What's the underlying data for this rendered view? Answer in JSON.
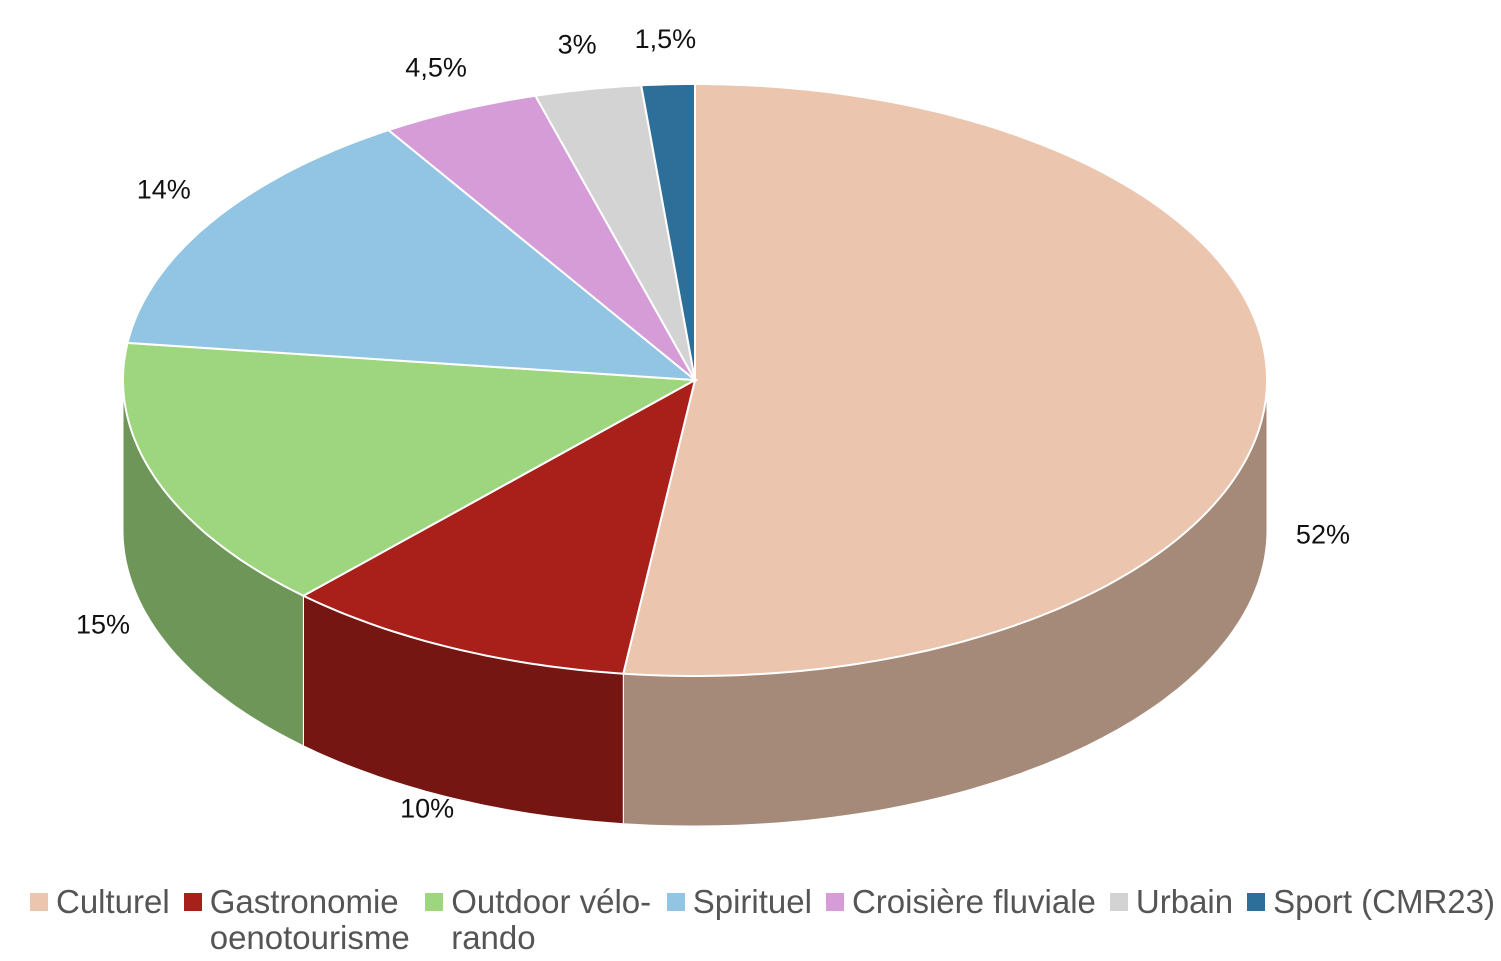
{
  "chart_data": {
    "type": "pie",
    "categories": [
      "Culturel",
      "Gastronomie oenotourisme",
      "Outdoor vélo-rando",
      "Spirituel",
      "Croisière fluviale",
      "Urbain",
      "Sport (CMR23)"
    ],
    "values": [
      52,
      10,
      15,
      14,
      4.5,
      3,
      1.5
    ],
    "value_labels": [
      "52%",
      "10%",
      "15%",
      "14%",
      "4,5%",
      "3%",
      "1,5%"
    ],
    "colors": [
      "#ebc5ad",
      "#a9201a",
      "#9ed67f",
      "#92c5e3",
      "#d59cd7",
      "#d3d3d3",
      "#2e6f99"
    ],
    "legend": "bottom"
  }
}
